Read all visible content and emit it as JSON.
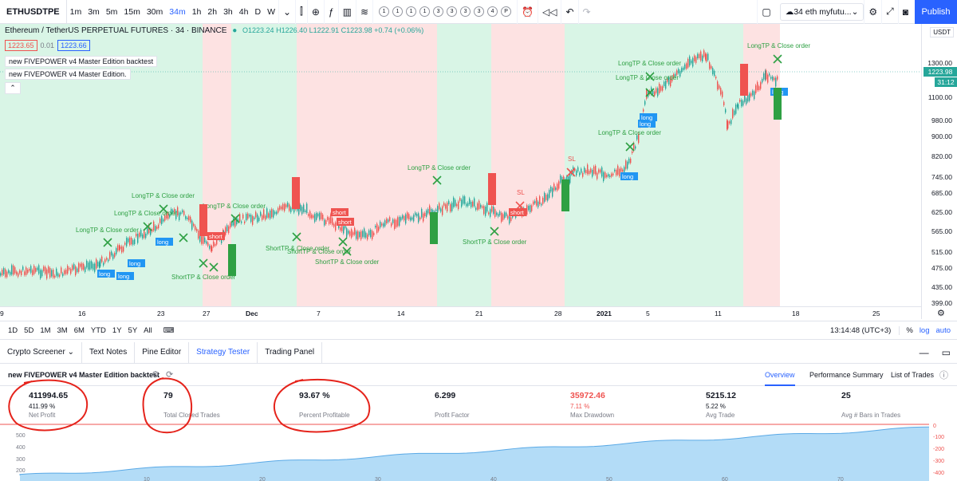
{
  "toolbar": {
    "symbol": "ETHUSDTPE",
    "timeframes": [
      "1m",
      "3m",
      "5m",
      "15m",
      "30m",
      "34m",
      "1h",
      "2h",
      "3h",
      "4h",
      "D",
      "W"
    ],
    "active_timeframe": "34m",
    "replay_numbers": [
      "1",
      "1",
      "1",
      "1",
      "3",
      "3",
      "3",
      "3",
      "4",
      "P"
    ],
    "layout_name": "34 eth myfutu...",
    "publish_label": "Publish"
  },
  "legend": {
    "title": "Ethereum / TetherUS PERPETUAL FUTURES · 34 · BINANCE",
    "ohlc": "O1223.24 H1226.40 L1222.91 C1223.98 +0.74 (+0.06%)",
    "bid": "1223.65",
    "spread": "0.01",
    "ask": "1223.66",
    "indicator1": "new FIVEPOWER v4 Master Edition backtest",
    "indicator2": "new FIVEPOWER v4 Master Edition."
  },
  "price_axis": {
    "currency": "USDT",
    "ticks": [
      "1300.00",
      "1100.00",
      "980.00",
      "900.00",
      "820.00",
      "745.00",
      "685.00",
      "625.00",
      "565.00",
      "515.00",
      "475.00",
      "435.00",
      "399.00"
    ],
    "last_price": "1223.98",
    "countdown": "31:12"
  },
  "time_axis": {
    "ticks": [
      "9",
      "16",
      "23",
      "27",
      "Dec",
      "7",
      "14",
      "21",
      "28",
      "2021",
      "5",
      "11",
      "18",
      "25"
    ]
  },
  "chart_labels": {
    "long_tp": "LongTP & Close order",
    "short_tp": "ShortTP & Close order",
    "long": "long",
    "short": "short",
    "sl": "SL",
    "long_vertical": "LONG",
    "short_vertical": "SHORT",
    "tp_short": "Short"
  },
  "range_bar": {
    "ranges": [
      "1D",
      "5D",
      "1M",
      "3M",
      "6M",
      "YTD",
      "1Y",
      "5Y",
      "All"
    ],
    "clock": "13:14:48 (UTC+3)",
    "percent": "%",
    "log": "log",
    "auto": "auto"
  },
  "bottom_tabs": [
    "Crypto Screener",
    "Text Notes",
    "Pine Editor",
    "Strategy Tester",
    "Trading Panel"
  ],
  "strategy": {
    "name": "new FIVEPOWER v4 Master Edition backtest",
    "tabs": [
      "Overview",
      "Performance Summary",
      "List of Trades"
    ],
    "metrics": [
      {
        "value": "411994.65",
        "pct": "411.99 %",
        "label": "Net Profit",
        "color": "#131722"
      },
      {
        "value": "79",
        "pct": "",
        "label": "Total Closed Trades",
        "color": "#131722"
      },
      {
        "value": "93.67 %",
        "pct": "",
        "label": "Percent Profitable",
        "color": "#131722"
      },
      {
        "value": "6.299",
        "pct": "",
        "label": "Profit Factor",
        "color": "#131722"
      },
      {
        "value": "35972.46",
        "pct": "7.11 %",
        "label": "Max Drawdown",
        "color": "#ef5350"
      },
      {
        "value": "5215.12",
        "pct": "5.22 %",
        "label": "Avg Trade",
        "color": "#131722"
      },
      {
        "value": "25",
        "pct": "",
        "label": "Avg # Bars in Trades",
        "color": "#131722"
      }
    ],
    "equity_left_ticks": [
      "500",
      "400",
      "300",
      "200"
    ],
    "equity_right_ticks": [
      "0",
      "-100",
      "-200",
      "-300",
      "-400"
    ],
    "equity_x_ticks": [
      "10",
      "20",
      "30",
      "40",
      "50",
      "60",
      "70"
    ]
  },
  "colors": {
    "accent": "#2962ff",
    "up": "#26a69a",
    "down": "#ef5350",
    "long_zone": "#d9f5e6",
    "short_zone": "#fde2e2"
  }
}
